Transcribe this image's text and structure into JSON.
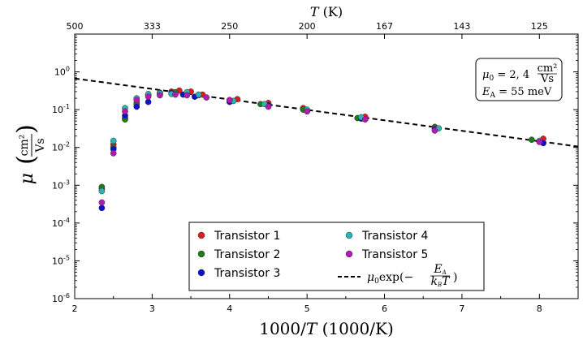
{
  "chart_data": {
    "type": "scatter",
    "title": "",
    "xlabel": "1000/T (1000/K)",
    "ylabel": "μ (cm²/Vs)",
    "top_axis_label": "T (K)",
    "xlim": [
      2,
      8.5
    ],
    "ylim_log10": [
      -6,
      1
    ],
    "y_scale": "log",
    "grid": false,
    "x_ticks": [
      "2",
      "3",
      "4",
      "5",
      "6",
      "7",
      "8"
    ],
    "top_ticks": [
      {
        "x": 2.0,
        "label": "500"
      },
      {
        "x": 3.0,
        "label": "333"
      },
      {
        "x": 4.0,
        "label": "250"
      },
      {
        "x": 5.0,
        "label": "200"
      },
      {
        "x": 6.0,
        "label": "167"
      },
      {
        "x": 7.0,
        "label": "143"
      },
      {
        "x": 8.0,
        "label": "125"
      }
    ],
    "y_ticks": [
      {
        "exp": 0,
        "label": "10",
        "sup": "0"
      },
      {
        "exp": -1,
        "label": "10",
        "sup": "-1"
      },
      {
        "exp": -2,
        "label": "10",
        "sup": "-2"
      },
      {
        "exp": -3,
        "label": "10",
        "sup": "-3"
      },
      {
        "exp": -4,
        "label": "10",
        "sup": "-4"
      },
      {
        "exp": -5,
        "label": "10",
        "sup": "-5"
      },
      {
        "exp": -6,
        "label": "10",
        "sup": "-6"
      }
    ],
    "series": [
      {
        "name": "Transistor 1",
        "color": "#e31a1c",
        "points": [
          [
            2.35,
            0.0008
          ],
          [
            2.5,
            0.012
          ],
          [
            2.65,
            0.06
          ],
          [
            2.8,
            0.15
          ],
          [
            2.95,
            0.25
          ],
          [
            3.1,
            0.28
          ],
          [
            3.25,
            0.3
          ],
          [
            3.35,
            0.32
          ],
          [
            3.5,
            0.3
          ],
          [
            3.65,
            0.25
          ],
          [
            4.1,
            0.19
          ],
          [
            4.5,
            0.15
          ],
          [
            4.95,
            0.11
          ],
          [
            5.75,
            0.065
          ],
          [
            6.65,
            0.035
          ],
          [
            8.05,
            0.017
          ]
        ]
      },
      {
        "name": "Transistor 2",
        "color": "#1e7a1e",
        "points": [
          [
            2.35,
            0.0009
          ],
          [
            2.5,
            0.01
          ],
          [
            2.65,
            0.055
          ],
          [
            2.8,
            0.14
          ],
          [
            2.95,
            0.24
          ],
          [
            3.1,
            0.27
          ],
          [
            3.3,
            0.29
          ],
          [
            3.45,
            0.27
          ],
          [
            3.6,
            0.24
          ],
          [
            4.0,
            0.18
          ],
          [
            4.4,
            0.14
          ],
          [
            4.95,
            0.1
          ],
          [
            5.65,
            0.06
          ],
          [
            6.65,
            0.033
          ],
          [
            7.9,
            0.016
          ]
        ]
      },
      {
        "name": "Transistor 3",
        "color": "#1010cc",
        "points": [
          [
            2.35,
            0.00025
          ],
          [
            2.5,
            0.009
          ],
          [
            2.65,
            0.07
          ],
          [
            2.8,
            0.12
          ],
          [
            2.95,
            0.16
          ],
          [
            3.1,
            0.25
          ],
          [
            3.25,
            0.28
          ],
          [
            3.4,
            0.25
          ],
          [
            3.55,
            0.22
          ],
          [
            4.0,
            0.16
          ],
          [
            4.5,
            0.13
          ],
          [
            5.0,
            0.095
          ],
          [
            5.7,
            0.058
          ],
          [
            6.65,
            0.03
          ],
          [
            8.05,
            0.013
          ]
        ]
      },
      {
        "name": "Transistor 4",
        "color": "#2ab3b3",
        "points": [
          [
            2.35,
            0.0007
          ],
          [
            2.5,
            0.015
          ],
          [
            2.65,
            0.11
          ],
          [
            2.8,
            0.2
          ],
          [
            2.95,
            0.26
          ],
          [
            3.1,
            0.27
          ],
          [
            3.25,
            0.26
          ],
          [
            3.45,
            0.29
          ],
          [
            3.6,
            0.25
          ],
          [
            4.05,
            0.17
          ],
          [
            4.45,
            0.14
          ],
          [
            5.0,
            0.1
          ],
          [
            5.7,
            0.063
          ],
          [
            6.7,
            0.032
          ],
          [
            8.0,
            0.015
          ]
        ]
      },
      {
        "name": "Transistor 5",
        "color": "#b31ab3",
        "points": [
          [
            2.35,
            0.00035
          ],
          [
            2.5,
            0.007
          ],
          [
            2.65,
            0.09
          ],
          [
            2.8,
            0.18
          ],
          [
            2.95,
            0.22
          ],
          [
            3.1,
            0.24
          ],
          [
            3.3,
            0.25
          ],
          [
            3.45,
            0.24
          ],
          [
            3.7,
            0.21
          ],
          [
            4.0,
            0.18
          ],
          [
            4.5,
            0.12
          ],
          [
            5.0,
            0.09
          ],
          [
            5.75,
            0.055
          ],
          [
            6.65,
            0.028
          ],
          [
            8.0,
            0.014
          ]
        ]
      }
    ],
    "fit_line": {
      "label": "μ0exp(−EA/kBT)",
      "mu0": 2.4,
      "EA_meV": 55,
      "x_range": [
        2,
        8.5
      ],
      "color": "#000000",
      "style": "dashed"
    },
    "legend": {
      "placement": "bottom-center",
      "fit_entry_label": "μ0exp(−EA/kBT)"
    },
    "annotation": {
      "placement": "top-right",
      "line1": "μ0 = 2, 4 cm²/Vs",
      "line2": "EA = 55 meV"
    }
  }
}
